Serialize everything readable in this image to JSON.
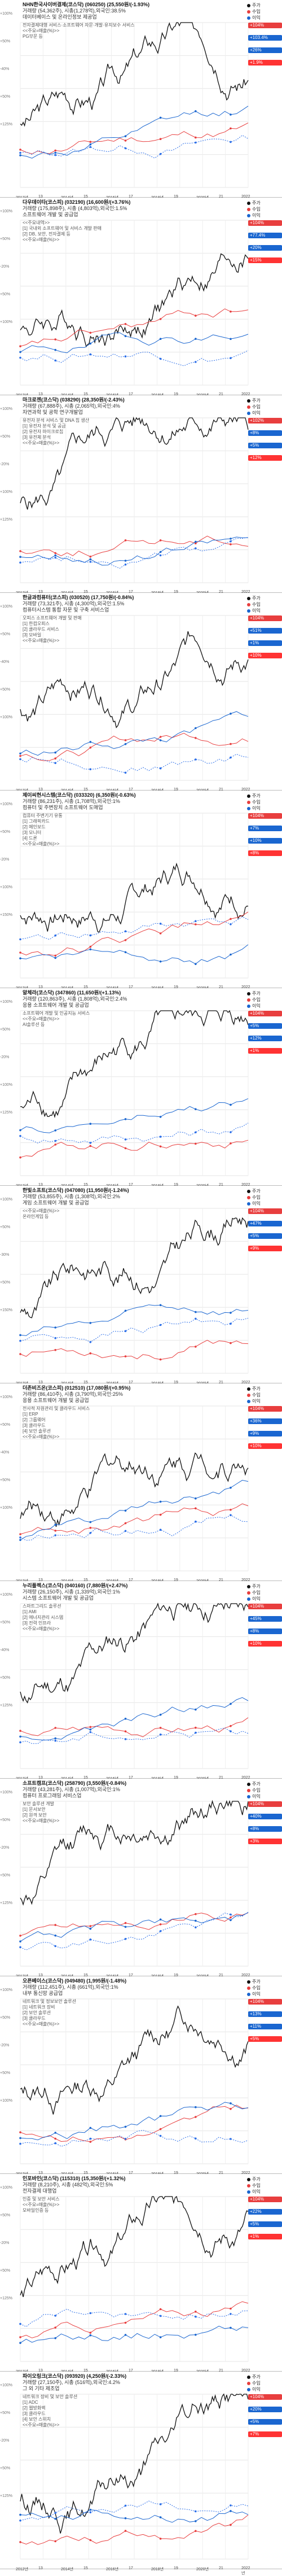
{
  "panels": [
    {
      "title": "NHN한국사이버결제(코스닥) (060250) (25,550원/(-1.93%)",
      "line2": "거래량 (54,362주), 시총(1,278억),외국인:38.5%",
      "line3": "데이터베이스 및 온라인정보 제공업",
      "notes": [
        "전자결제대행 서비스·소프트웨어 자문·개발·유지보수 서비스",
        "<<주요=매출(%)>>",
        "PG부문 등"
      ],
      "pcts": [
        "+100%",
        "+50%",
        "-40%",
        "+50%",
        "+125%"
      ],
      "tags": [
        "+104%",
        "+103.4%",
        "+26%",
        "+1.9%"
      ],
      "colors": [
        "#e83e3e",
        "#1a66d0",
        "#1a66d0",
        "#ff3333"
      ]
    },
    {
      "title": "다우데이타(코스피) (032190) (16,600원/(+3.76%)",
      "line2": "거래량 (175,898주), 시총 (4,803억),외국인:1.5%",
      "line3": "소프트웨어 개발 및 공급업",
      "notes": [
        "<<주요내역>>",
        "[1] 국내외 소프트웨어 및 서비스 개발 판매",
        "[2] DB, 보안, 전자결제 등",
        "<<주요=매출(%)>>"
      ],
      "pcts": [
        "+100%",
        "+50%",
        "-20%",
        "+50%",
        "+100%"
      ],
      "tags": [
        "+104%",
        "+77.4%",
        "+20%",
        "+15%"
      ],
      "colors": [
        "#e83e3e",
        "#1a66d0",
        "#1a66d0",
        "#ff3333"
      ]
    },
    {
      "title": "마크로젠(코스닥) (038290) (28,350원/(-2.43%)",
      "line2": "거래량 (67,888주), 시총 (2,065억),외국인:4%",
      "line3": "자연과학 및 공학 연구개발업",
      "notes": [
        "유전자 분석 서비스 및 DNA 칩 생산",
        "[1] 유전자 분석 및 공급",
        "[2] 유전자 마이크로칩",
        "[3] 유전체 분석",
        "<<주요=매출(%)>>"
      ],
      "pcts": [
        "+100%",
        "+50%",
        "-20%",
        "+100%",
        "+125%"
      ],
      "tags": [
        "+102%",
        "+8%",
        "+5%",
        "+12%"
      ],
      "colors": [
        "#e83e3e",
        "#1a66d0",
        "#1a66d0",
        "#ff3333"
      ]
    },
    {
      "title": "한글과컴퓨터(코스피) (030520) (17,750원/(-0.84%)",
      "line2": "거래량 (73,321주), 시총 (4,300억),외국인:1.5%",
      "line3": "컴퓨터시스템 통합 자문 및 구축 서비스업",
      "notes": [
        "오피스 소프트웨어 개발 및 판매",
        "[1] 한컴오피스",
        "[2] 클라우드 서비스",
        "[3] 모바일",
        "<<주요=매출(%)>>"
      ],
      "pcts": [
        "+100%",
        "+50%",
        "-40%",
        "+50%",
        "+100%"
      ],
      "tags": [
        "+104%",
        "+51%",
        "+1%",
        "+10%"
      ],
      "colors": [
        "#e83e3e",
        "#1a66d0",
        "#1a66d0",
        "#ff3333"
      ]
    },
    {
      "title": "제이씨현시스템(코스닥) (033320) (6,350원/(-0.63%)",
      "line2": "거래량 (86,231주), 시총 (1,708억),외국인:1%",
      "line3": "컴퓨터 및 주변장치 소프트웨어 도매업",
      "notes": [
        "컴퓨터 주변기기 유통",
        "[1] 그래픽카드",
        "[2] 메인보드",
        "[3] 모니터",
        "[4] 드론",
        "<<주요=매출(%)>>"
      ],
      "pcts": [
        "+100%",
        "+50%",
        "-20%",
        "+100%",
        "+150%"
      ],
      "tags": [
        "+104%",
        "+7%",
        "+10%",
        "+8%"
      ],
      "colors": [
        "#e83e3e",
        "#1a66d0",
        "#1a66d0",
        "#ff3333"
      ]
    },
    {
      "title": "알체라(코스닥) (347860) (11,650원/(+1.13%)",
      "line2": "거래량 (120,863주), 시총 (1,808억),외국인:2.4%",
      "line3": "응용 소프트웨어 개발 및 공급업",
      "notes": [
        "소프트웨어 개발 및 인공지능 서비스",
        "<<주요=매출(%)>>",
        "AI솔루션 등"
      ],
      "pcts": [
        "+100%",
        "+50%",
        "-20%",
        "+100%",
        "+125%"
      ],
      "tags": [
        "+104%",
        "+5%",
        "+12%",
        "+1%"
      ],
      "colors": [
        "#e83e3e",
        "#1a66d0",
        "#1a66d0",
        "#ff3333"
      ]
    },
    {
      "title": "한빛소프트(코스닥) (047080) (11,950원/(-1.24%)",
      "line2": "거래량 (53,855주), 시총 (1,308억),외국인:2%",
      "line3": "게임 소프트웨어 개발 및 공급업",
      "notes": [
        "<<주요=매출(%)>>",
        "온라인게임 등"
      ],
      "pcts": [
        "+100%",
        "+50%",
        "-30%",
        "+50%",
        "+150%"
      ],
      "tags": [
        "+104%",
        "+47%",
        "+5%",
        "+9%"
      ],
      "colors": [
        "#e83e3e",
        "#1a66d0",
        "#1a66d0",
        "#ff3333"
      ]
    },
    {
      "title": "더존비즈온(코스피) (012510) (17,080원/(+0.95%)",
      "line2": "거래량 (86,410주), 시총 (3,790억),외국인:25%",
      "line3": "응용 소프트웨어 개발 및 공급업",
      "notes": [
        "전사적 자원관리 및 클라우드 서비스",
        "[1] ERP",
        "[2] 그룹웨어",
        "[3] 클라우드",
        "[4] 보안 솔루션",
        "<<주요=매출(%)>>"
      ],
      "pcts": [
        "+100%",
        "+50%",
        "-40%",
        "+50%",
        "+100%"
      ],
      "tags": [
        "+104%",
        "+36%",
        "+9%",
        "+10%"
      ],
      "colors": [
        "#e83e3e",
        "#1a66d0",
        "#1a66d0",
        "#ff3333"
      ]
    },
    {
      "title": "누리플렉스(코스닥) (040160) (7,880원/(+2.47%)",
      "line2": "거래량 (26,150주), 시총 (1,339억),외국인:1%",
      "line3": "시스템 소프트웨어 개발 및 공급업",
      "notes": [
        "스마트그리드 솔루션",
        "[1] AMI",
        "[2] 에너지관리 시스템",
        "[3] 전력 인프라",
        "<<주요=매출(%)>>"
      ],
      "pcts": [
        "+100%",
        "+50%",
        "-40%",
        "+50%",
        "+125%"
      ],
      "tags": [
        "+104%",
        "+45%",
        "+8%",
        "+10%"
      ],
      "colors": [
        "#e83e3e",
        "#1a66d0",
        "#1a66d0",
        "#ff3333"
      ]
    },
    {
      "title": "소프트캠프(코스닥) (258790) (3,550원/(-0.84%)",
      "line2": "거래량 (43,281주), 시총 (1,007억),외국인:1%",
      "line3": "컴퓨터 프로그래밍 서비스업",
      "notes": [
        "보안 솔루션 개발",
        "[1] 문서보안",
        "[2] 원격 보안",
        "<<주요=매출(%)>>"
      ],
      "pcts": [
        "+100%",
        "+50%",
        "-20%",
        "+50%",
        "+125%"
      ],
      "tags": [
        "+104%",
        "+40%",
        "+8%",
        "+3%"
      ],
      "colors": [
        "#e83e3e",
        "#1a66d0",
        "#1a66d0",
        "#ff3333"
      ]
    },
    {
      "title": "오픈베이스(코스닥) (049480) (1,995원/(-1.48%)",
      "line2": "거래량 (112,451주), 시총 (661억),외국인:1%",
      "line3": "내부 통신망 공급업",
      "notes": [
        "네트워크 및 정보보안 솔루션",
        "[1] 네트워크 장비",
        "[2] 보안 솔루션",
        "[3] 클라우드",
        "<<주요=매출(%)>>"
      ],
      "pcts": [
        "+100%",
        "+50%",
        "-20%",
        "+50%",
        "+100%"
      ],
      "tags": [
        "+104%",
        "+13%",
        "+11%",
        "+5%"
      ],
      "colors": [
        "#e83e3e",
        "#1a66d0",
        "#1a66d0",
        "#ff3333"
      ]
    },
    {
      "title": "인포바인(코스닥) (115310) (15,350원/(+1.32%)",
      "line2": "거래량 (8,210주), 시총 (482억),외국인:5%",
      "line3": "전자결제 대행업",
      "notes": [
        "인증 및 보안 서비스",
        "<<주요=매출(%)>>",
        "모바일인증 등"
      ],
      "pcts": [
        "+100%",
        "+50%",
        "-20%",
        "+50%",
        "+125%"
      ],
      "tags": [
        "+104%",
        "+22%",
        "+5%",
        "+1%"
      ],
      "colors": [
        "#e83e3e",
        "#1a66d0",
        "#1a66d0",
        "#ff3333"
      ]
    },
    {
      "title": "파이오링크(코스닥) (093920) (4,250원/(-2.33%)",
      "line2": "거래량 (27,150주), 시총 (516억),외국인:4.2%",
      "line3": "그 외 기타 제조업",
      "notes": [
        "네트워크 장비 및 보안 솔루션",
        "[1] ADC",
        "[2] 웹방화벽",
        "[3] 클라우드",
        "[4] 보안 스위치",
        "<<주요=매출(%)>>"
      ],
      "pcts": [
        "+100%",
        "+50%",
        "-20%",
        "+50%",
        "+125%"
      ],
      "tags": [
        "+104%",
        "+20%",
        "+5%",
        "+7%"
      ],
      "colors": [
        "#e83e3e",
        "#1a66d0",
        "#1a66d0",
        "#ff3333"
      ]
    }
  ],
  "legend": [
    {
      "label": "주가",
      "color": "#111111"
    },
    {
      "label": "수입",
      "color": "#e83e3e"
    },
    {
      "label": "이익",
      "color": "#1a66d0"
    }
  ],
  "x_labels": [
    "2012년",
    "13",
    "2014년",
    "15",
    "2016년",
    "17",
    "2018년",
    "19",
    "2020년",
    "21",
    "2022년"
  ],
  "chart_data": {
    "type": "line",
    "title": "",
    "x": [
      "2012",
      "2013",
      "2014",
      "2015",
      "2016",
      "2017",
      "2018",
      "2019",
      "2020",
      "2021",
      "2022"
    ],
    "series": [
      {
        "name": "주가",
        "values": [
          0.3,
          0.35,
          0.32,
          0.45,
          0.5,
          0.55,
          0.6,
          0.7,
          0.85,
          1.0,
          0.8
        ]
      },
      {
        "name": "수입",
        "values": [
          0.2,
          0.25,
          0.28,
          0.3,
          0.35,
          0.4,
          0.45,
          0.55,
          0.65,
          0.8,
          0.9
        ]
      },
      {
        "name": "이익",
        "values": [
          0.15,
          0.18,
          0.2,
          0.22,
          0.3,
          0.28,
          0.35,
          0.4,
          0.5,
          0.7,
          0.6
        ]
      }
    ]
  }
}
